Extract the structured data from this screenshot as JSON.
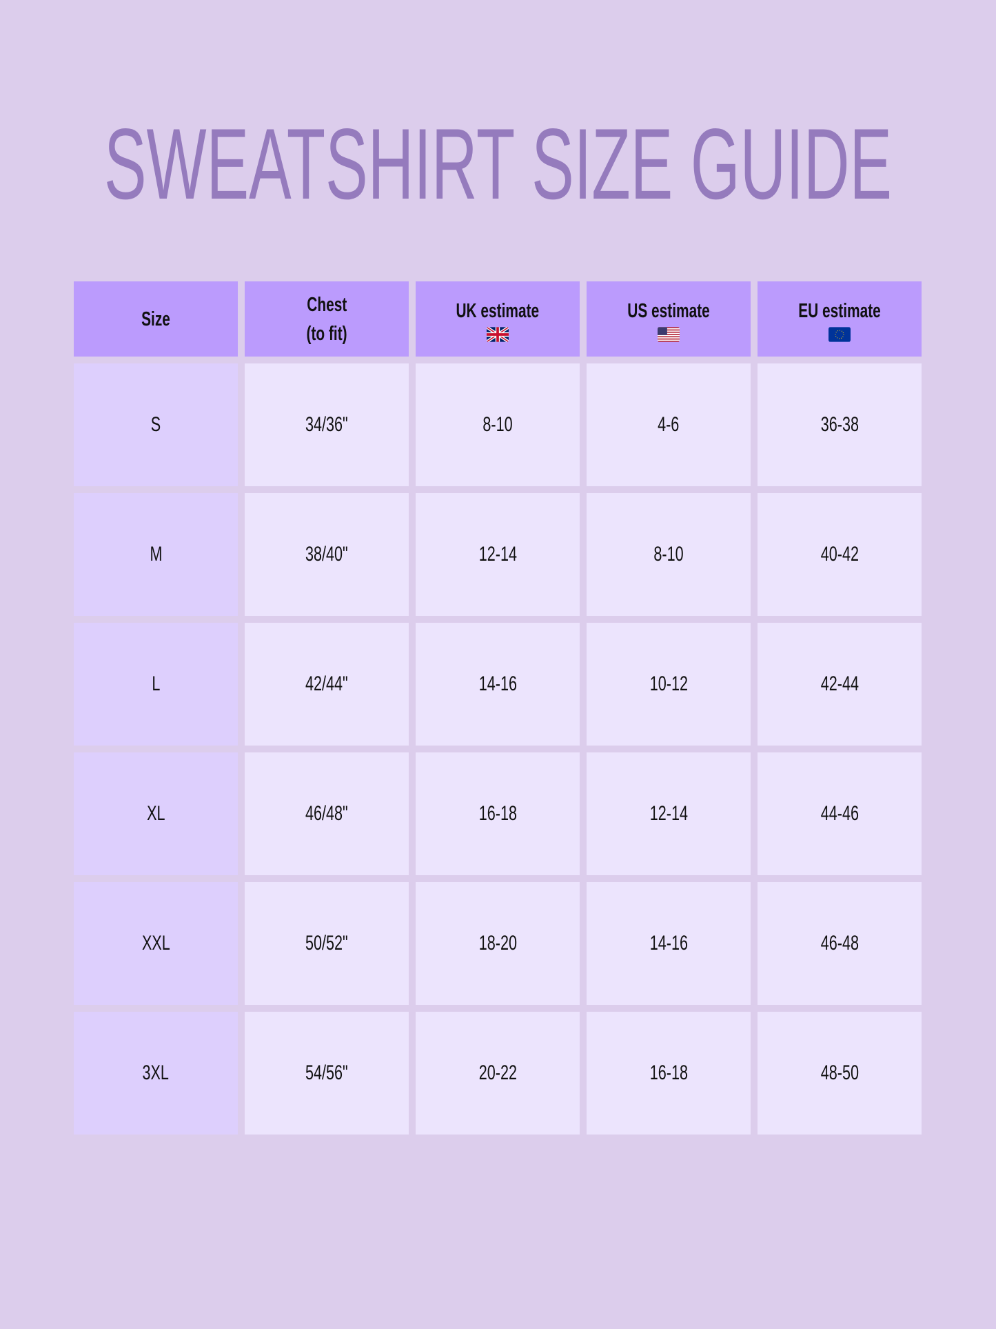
{
  "title": "SWEATSHIRT SIZE GUIDE",
  "headers": [
    {
      "line1": "Size",
      "line2": ""
    },
    {
      "line1": "Chest",
      "line2": "(to fit)"
    },
    {
      "line1": "UK estimate",
      "flag": "uk-flag-icon"
    },
    {
      "line1": "US estimate",
      "flag": "us-flag-icon"
    },
    {
      "line1": "EU estimate",
      "flag": "eu-flag-icon"
    }
  ],
  "rows": [
    [
      "S",
      "34/36\"",
      "8-10",
      "4-6",
      "36-38"
    ],
    [
      "M",
      "38/40\"",
      "12-14",
      "8-10",
      "40-42"
    ],
    [
      "L",
      "42/44\"",
      "14-16",
      "10-12",
      "42-44"
    ],
    [
      "XL",
      "46/48\"",
      "16-18",
      "12-14",
      "44-46"
    ],
    [
      "XXL",
      "50/52\"",
      "18-20",
      "14-16",
      "46-48"
    ],
    [
      "3XL",
      "54/56\"",
      "20-22",
      "16-18",
      "48-50"
    ]
  ],
  "colors": {
    "background": "#dccdec",
    "title": "#957bbd",
    "header": "#bb9bfd",
    "size_col": "#ddcffd",
    "cell": "#ece4fd"
  }
}
